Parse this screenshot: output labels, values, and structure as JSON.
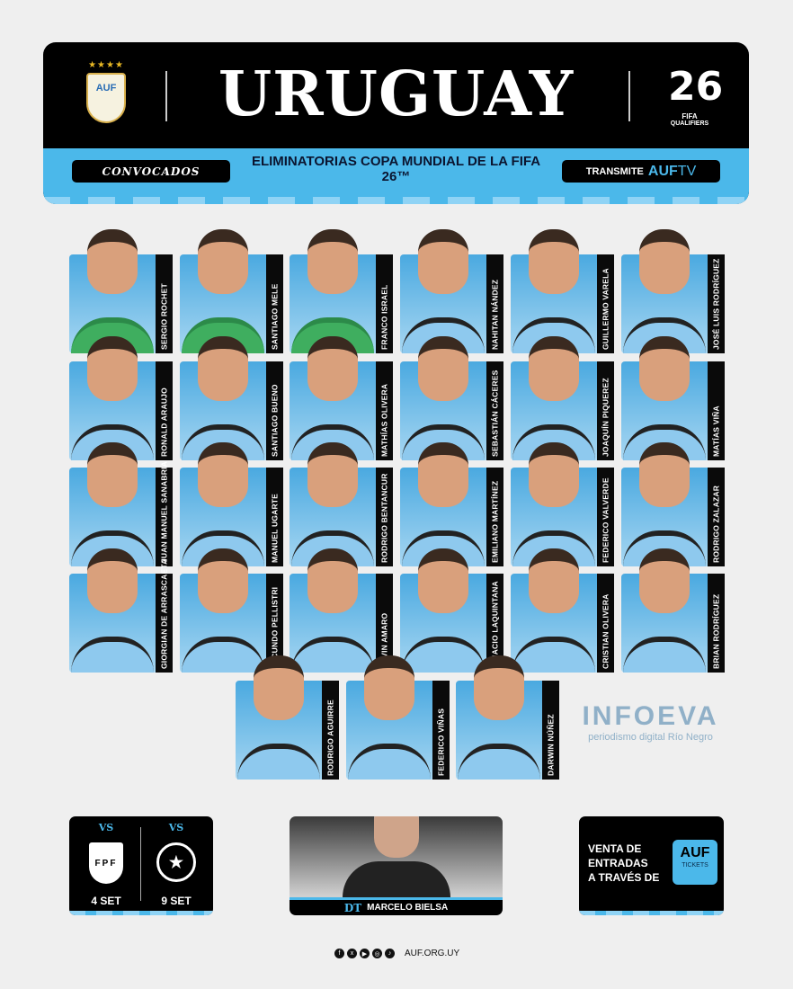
{
  "header": {
    "title": "URUGUAY",
    "crest_text": "AUF",
    "stars": "★★★★",
    "wc_logo": {
      "number": "26",
      "fifa": "FIFA",
      "qualifiers": "QUALIFIERS"
    },
    "convocados": "CONVOCADOS",
    "subtitle": "ELIMINATORIAS COPA MUNDIAL DE LA FIFA 26™",
    "broadcast": {
      "label": "TRANSMITE",
      "brand": "AUF",
      "tv": "TV"
    }
  },
  "players": [
    {
      "name": "SERGIO ROCHET",
      "gk": true
    },
    {
      "name": "SANTIAGO MELE",
      "gk": true
    },
    {
      "name": "FRANCO ISRAEL",
      "gk": true
    },
    {
      "name": "NAHITAN NÁNDEZ"
    },
    {
      "name": "GUILLERMO VARELA"
    },
    {
      "name": "JOSÉ LUIS RODRÍGUEZ"
    },
    {
      "name": "RONALD ARAUJO"
    },
    {
      "name": "SANTIAGO BUENO"
    },
    {
      "name": "MATHÍAS OLIVERA"
    },
    {
      "name": "SEBASTIÁN CÁCERES"
    },
    {
      "name": "JOAQUÍN PIQUEREZ"
    },
    {
      "name": "MATÍAS VIÑA"
    },
    {
      "name": "JUAN MANUEL SANABRIA"
    },
    {
      "name": "MANUEL UGARTE"
    },
    {
      "name": "RODRIGO BENTANCUR"
    },
    {
      "name": "EMILIANO MARTÍNEZ"
    },
    {
      "name": "FEDERICO VALVERDE"
    },
    {
      "name": "RODRIGO ZALAZAR"
    },
    {
      "name": "GIORGIAN DE ARRASCAETA"
    },
    {
      "name": "FACUNDO PELLISTRI"
    },
    {
      "name": "KEVIN AMARO"
    },
    {
      "name": "IGNACIO LAQUINTANA"
    },
    {
      "name": "CRISTIAN OLIVERA"
    },
    {
      "name": "BRIAN RODRÍGUEZ"
    },
    {
      "name": "RODRIGO AGUIRRE"
    },
    {
      "name": "FEDERICO VIÑAS"
    },
    {
      "name": "DARWIN NÚÑEZ"
    }
  ],
  "watermark": {
    "brand": "INFOEVA",
    "tagline": "periodismo digital Río Negro"
  },
  "matches": [
    {
      "vs": "VS",
      "team": "FPF",
      "date": "4 SET"
    },
    {
      "vs": "VS",
      "team": "★",
      "date": "9 SET"
    }
  ],
  "coach": {
    "role": "DT",
    "name": "MARCELO BIELSA"
  },
  "tickets": {
    "text": [
      "VENTA DE",
      "ENTRADAS",
      "A TRAVÉS DE"
    ],
    "brand": "AUF",
    "sub": "TICKETS"
  },
  "footer": {
    "social": [
      "f",
      "x",
      "▶",
      "◎",
      "♪"
    ],
    "site": "AUF.ORG.UY"
  },
  "colors": {
    "accent": "#4bb8ea",
    "dark": "#000000",
    "background": "#efefef"
  }
}
